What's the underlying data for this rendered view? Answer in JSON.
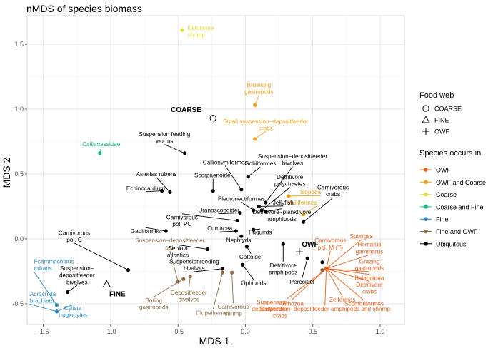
{
  "chart_data": {
    "type": "scatter",
    "title": "nMDS of species biomass",
    "xlabel": "MDS 1",
    "ylabel": "MDS 2",
    "xlim": [
      -1.62,
      1.18
    ],
    "ylim": [
      -0.66,
      1.72
    ],
    "x_ticks": [
      -1.5,
      -1.0,
      -0.5,
      0.0,
      0.5,
      1.0
    ],
    "x_tick_labels": [
      "-1.5",
      "-1.0",
      "-0.5",
      "0.0",
      "0.5",
      "1.0"
    ],
    "y_ticks": [
      -0.5,
      0.0,
      0.5,
      1.0,
      1.5
    ],
    "y_tick_labels": [
      "-0.5",
      "0.0",
      "0.5",
      "1.0",
      "1.5"
    ],
    "grid": true,
    "categories_legend": {
      "title": "Species occurs in",
      "entries": [
        {
          "name": "OWF",
          "color": "#E8601C"
        },
        {
          "name": "OWF and Coarse",
          "color": "#E8A11C"
        },
        {
          "name": "Coarse",
          "color": "#E3DC3A"
        },
        {
          "name": "Coarse and Fine",
          "color": "#1BB58A"
        },
        {
          "name": "Fine",
          "color": "#2E8BC0"
        },
        {
          "name": "Fine and OWF",
          "color": "#8E6C46"
        },
        {
          "name": "Ubiquitous",
          "color": "#000000"
        }
      ]
    },
    "foodweb_legend": {
      "title": "Food web",
      "entries": [
        {
          "name": "COARSE",
          "shape": "circle"
        },
        {
          "name": "FINE",
          "shape": "triangle"
        },
        {
          "name": "OWF",
          "shape": "cross"
        }
      ]
    },
    "foodwebs": [
      {
        "name": "COARSE",
        "shape": "circle",
        "x": -0.24,
        "y": 0.93,
        "lx": -0.44,
        "ly": 1.0
      },
      {
        "name": "FINE",
        "shape": "triangle",
        "x": -1.03,
        "y": -0.35,
        "lx": -0.95,
        "ly": -0.42
      },
      {
        "name": "OWF",
        "shape": "cross",
        "x": 0.4,
        "y": -0.1,
        "lx": 0.48,
        "ly": -0.04
      }
    ],
    "points": [
      {
        "label": "Detritivore\nshrimp",
        "group": "Coarse",
        "x": -0.47,
        "y": 1.61,
        "lx": -0.43,
        "ly": 1.6,
        "anchor": "start"
      },
      {
        "label": "Browsing\ngastropods",
        "group": "OWF and Coarse",
        "x": 0.07,
        "y": 1.03,
        "lx": 0.1,
        "ly": 1.16,
        "anchor": "middle"
      },
      {
        "label": "Small suspension−depositfeeder\ncrabs",
        "group": "OWF and Coarse",
        "x": 0.07,
        "y": 0.77,
        "lx": 0.15,
        "ly": 0.88,
        "anchor": "middle"
      },
      {
        "label": "Isopoda",
        "group": "OWF and Coarse",
        "x": 0.32,
        "y": 0.33,
        "lx": 0.56,
        "ly": 0.36,
        "anchor": "end"
      },
      {
        "label": "Mulliformes",
        "group": "OWF and Coarse",
        "x": 0.43,
        "y": 0.19,
        "lx": 0.53,
        "ly": 0.28,
        "anchor": "end"
      },
      {
        "label": "Callianassidae",
        "group": "Coarse and Fine",
        "x": -1.08,
        "y": 0.66,
        "lx": -1.07,
        "ly": 0.73,
        "anchor": "middle"
      },
      {
        "label": "Psammechinus\nmiliaris",
        "group": "Fine",
        "x": -1.4,
        "y": -0.51,
        "lx": -1.57,
        "ly": -0.2,
        "anchor": "start"
      },
      {
        "label": "Acrocnida\nbrachiata",
        "group": "Fine",
        "x": -1.4,
        "y": -0.56,
        "lx": -1.6,
        "ly": -0.45,
        "anchor": "start"
      },
      {
        "label": "Cylista\ntroglodytes",
        "group": "Fine",
        "x": -1.4,
        "y": -0.56,
        "lx": -1.28,
        "ly": -0.56,
        "anchor": "middle"
      },
      {
        "label": "Suspension−depositfeeder\npol.",
        "group": "Fine and OWF",
        "x": -0.5,
        "y": -0.33,
        "lx": -0.56,
        "ly": -0.04,
        "anchor": "middle"
      },
      {
        "label": "Boring\ngastropods",
        "group": "Fine and OWF",
        "x": -0.46,
        "y": -0.31,
        "lx": -0.68,
        "ly": -0.5,
        "anchor": "middle"
      },
      {
        "label": "Depositfeeder\nbivalves",
        "group": "Fine and OWF",
        "x": -0.41,
        "y": -0.29,
        "lx": -0.42,
        "ly": -0.44,
        "anchor": "middle"
      },
      {
        "label": "Clupeiformes",
        "group": "Fine and OWF",
        "x": -0.17,
        "y": -0.26,
        "lx": -0.24,
        "ly": -0.57,
        "anchor": "middle"
      },
      {
        "label": "Carnivorous\nshrimp",
        "group": "Fine and OWF",
        "x": -0.1,
        "y": -0.26,
        "lx": -0.09,
        "ly": -0.55,
        "anchor": "middle"
      },
      {
        "label": "Sponges",
        "group": "OWF",
        "x": 0.6,
        "y": -0.23,
        "lx": 0.86,
        "ly": 0.02,
        "anchor": "middle"
      },
      {
        "label": "Homarus\ngammarus",
        "group": "OWF",
        "x": 0.6,
        "y": -0.23,
        "lx": 0.92,
        "ly": -0.07,
        "anchor": "middle"
      },
      {
        "label": "Grazing\ngastropods",
        "group": "OWF",
        "x": 0.6,
        "y": -0.23,
        "lx": 0.92,
        "ly": -0.2,
        "anchor": "middle"
      },
      {
        "label": "Balanoidea",
        "group": "OWF",
        "x": 0.6,
        "y": -0.23,
        "lx": 0.92,
        "ly": -0.3,
        "anchor": "middle"
      },
      {
        "label": "Detritivore\ncrabs",
        "group": "OWF",
        "x": 0.6,
        "y": -0.23,
        "lx": 0.92,
        "ly": -0.38,
        "anchor": "middle"
      },
      {
        "label": "Scombriformes",
        "group": "OWF",
        "x": 0.6,
        "y": -0.23,
        "lx": 0.88,
        "ly": -0.5,
        "anchor": "middle"
      },
      {
        "label": "Zeiformes",
        "group": "OWF",
        "x": 0.6,
        "y": -0.23,
        "lx": 0.72,
        "ly": -0.47,
        "anchor": "middle"
      },
      {
        "label": "Anthozoa",
        "group": "OWF",
        "x": 0.6,
        "y": -0.23,
        "lx": 0.34,
        "ly": -0.5,
        "anchor": "middle"
      },
      {
        "label": "Suspension−depositfeeder amphipods and shrimp",
        "group": "OWF",
        "x": 0.6,
        "y": -0.23,
        "lx": 0.59,
        "ly": -0.54,
        "anchor": "middle"
      },
      {
        "label": "Suspension\ndepositfeeder\ncrabs",
        "group": "OWF",
        "x": 0.6,
        "y": -0.23,
        "lx": 0.31,
        "ly": -0.54,
        "anchor": "end"
      },
      {
        "label": "Carnivorous\npol. M (T)",
        "group": "OWF",
        "x": 0.6,
        "y": -0.23,
        "lx": 0.63,
        "ly": -0.04,
        "anchor": "middle"
      },
      {
        "label": "Suspension feeding\nworms",
        "group": "Ubiquitous",
        "x": -0.45,
        "y": 0.66,
        "lx": -0.6,
        "ly": 0.78,
        "anchor": "middle"
      },
      {
        "label": "Callionymiformes",
        "group": "Ubiquitous",
        "x": -0.03,
        "y": 0.38,
        "lx": -0.15,
        "ly": 0.59,
        "anchor": "middle"
      },
      {
        "label": "Gobiiformes",
        "group": "Ubiquitous",
        "x": 0.02,
        "y": 0.48,
        "lx": 0.11,
        "ly": 0.58,
        "anchor": "middle"
      },
      {
        "label": "Suspension−depositfeeder\nbivalves",
        "group": "Ubiquitous",
        "x": 0.15,
        "y": 0.28,
        "lx": 0.35,
        "ly": 0.61,
        "anchor": "middle"
      },
      {
        "label": "Asterias rubens",
        "group": "Ubiquitous",
        "x": -0.56,
        "y": 0.36,
        "lx": -0.66,
        "ly": 0.5,
        "anchor": "middle"
      },
      {
        "label": "Scorpaenoidei",
        "group": "Ubiquitous",
        "x": -0.24,
        "y": 0.37,
        "lx": -0.24,
        "ly": 0.49,
        "anchor": "middle"
      },
      {
        "label": "Echinocardium",
        "group": "Ubiquitous",
        "x": -0.62,
        "y": 0.37,
        "lx": -0.74,
        "ly": 0.39,
        "anchor": "middle"
      },
      {
        "label": "Detritivore\npolychaetes",
        "group": "Ubiquitous",
        "x": 0.12,
        "y": 0.22,
        "lx": 0.33,
        "ly": 0.45,
        "anchor": "middle"
      },
      {
        "label": "Pleuronectiformes",
        "group": "Ubiquitous",
        "x": 0.06,
        "y": 0.22,
        "lx": -0.03,
        "ly": 0.31,
        "anchor": "middle"
      },
      {
        "label": "Jellyfish",
        "group": "Ubiquitous",
        "x": 0.1,
        "y": 0.25,
        "lx": 0.28,
        "ly": 0.28,
        "anchor": "middle"
      },
      {
        "label": "Detritivore−planktivore\namphipods",
        "group": "Ubiquitous",
        "x": 0.15,
        "y": 0.21,
        "lx": 0.27,
        "ly": 0.18,
        "anchor": "middle"
      },
      {
        "label": "Carnivorous\ncrabs",
        "group": "Ubiquitous",
        "x": 0.43,
        "y": 0.13,
        "lx": 0.65,
        "ly": 0.37,
        "anchor": "middle"
      },
      {
        "label": "Uranoscopoidei",
        "group": "Ubiquitous",
        "x": -0.04,
        "y": 0.2,
        "lx": -0.2,
        "ly": 0.22,
        "anchor": "middle"
      },
      {
        "label": "Carnivorous\npol. PC",
        "group": "Ubiquitous",
        "x": -0.06,
        "y": 0.14,
        "lx": -0.47,
        "ly": 0.14,
        "anchor": "middle"
      },
      {
        "label": "Gadiformes",
        "group": "Ubiquitous",
        "x": -0.59,
        "y": 0.06,
        "lx": -0.74,
        "ly": 0.06,
        "anchor": "middle"
      },
      {
        "label": "Cumacea",
        "group": "Ubiquitous",
        "x": -0.07,
        "y": 0.06,
        "lx": -0.19,
        "ly": 0.08,
        "anchor": "middle"
      },
      {
        "label": "Nephtyds",
        "group": "Ubiquitous",
        "x": -0.03,
        "y": 0.02,
        "lx": -0.05,
        "ly": -0.01,
        "anchor": "middle"
      },
      {
        "label": "Paguirds",
        "group": "Ubiquitous",
        "x": 0.06,
        "y": 0.07,
        "lx": 0.11,
        "ly": 0.05,
        "anchor": "middle"
      },
      {
        "label": "Carnivorous\npol. C",
        "group": "Ubiquitous",
        "x": -0.87,
        "y": -0.24,
        "lx": -1.27,
        "ly": 0.02,
        "anchor": "middle"
      },
      {
        "label": "Sepiola\natlantica",
        "group": "Ubiquitous",
        "x": -0.28,
        "y": -0.08,
        "lx": -0.5,
        "ly": -0.1,
        "anchor": "middle"
      },
      {
        "label": "Cottoidei",
        "group": "Ubiquitous",
        "x": 0.01,
        "y": -0.06,
        "lx": 0.04,
        "ly": -0.14,
        "anchor": "middle"
      },
      {
        "label": "Detritivore\namphipods",
        "group": "Ubiquitous",
        "x": 0.28,
        "y": -0.04,
        "lx": 0.28,
        "ly": -0.23,
        "anchor": "middle"
      },
      {
        "label": "Suspensionfeeding\nbivalves",
        "group": "Ubiquitous",
        "x": -0.17,
        "y": -0.23,
        "lx": -0.38,
        "ly": -0.2,
        "anchor": "middle"
      },
      {
        "label": "Ophiurids",
        "group": "Ubiquitous",
        "x": -0.02,
        "y": -0.2,
        "lx": 0.06,
        "ly": -0.34,
        "anchor": "middle"
      },
      {
        "label": "Suspension−\ndepositfeeder\nbivalves",
        "group": "Ubiquitous",
        "x": -1.32,
        "y": -0.41,
        "lx": -1.25,
        "ly": -0.28,
        "anchor": "middle"
      },
      {
        "label": "Percoidei",
        "group": "Ubiquitous",
        "x": 0.46,
        "y": -0.15,
        "lx": 0.42,
        "ly": -0.33,
        "anchor": "middle"
      },
      {
        "label": "",
        "group": "Ubiquitous",
        "x": 0.57,
        "y": -0.18,
        "lx": 0.57,
        "ly": -0.18,
        "anchor": "middle"
      },
      {
        "label": "",
        "group": "Fine and OWF",
        "x": 0.57,
        "y": -0.24,
        "lx": 0.57,
        "ly": -0.24,
        "anchor": "middle"
      }
    ]
  }
}
